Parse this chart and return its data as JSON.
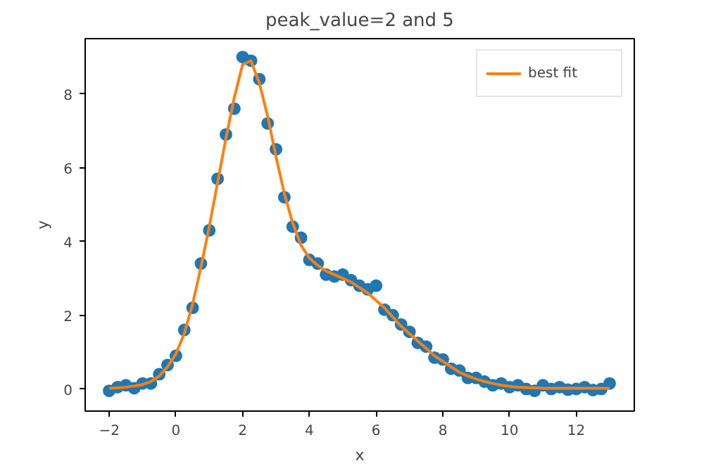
{
  "chart_data": {
    "type": "scatter",
    "title": "peak_value=2 and 5",
    "xlabel": "x",
    "ylabel": "y",
    "xlim": [
      -2.72,
      13.74
    ],
    "ylim": [
      -0.6,
      9.5
    ],
    "xticks": [
      -2,
      0,
      2,
      4,
      6,
      8,
      10,
      12
    ],
    "yticks": [
      0,
      2,
      4,
      6,
      8
    ],
    "grid": false,
    "legend": "top right",
    "x": [
      -2,
      -1.75,
      -1.5,
      -1.25,
      -1,
      -0.75,
      -0.5,
      -0.25,
      0,
      0.25,
      0.5,
      0.75,
      1,
      1.25,
      1.5,
      1.75,
      2,
      2.25,
      2.5,
      2.75,
      3,
      3.25,
      3.5,
      3.75,
      4,
      4.25,
      4.5,
      4.75,
      5,
      5.25,
      5.5,
      5.75,
      6,
      6.25,
      6.5,
      6.75,
      7,
      7.25,
      7.5,
      7.75,
      8,
      8.25,
      8.5,
      8.75,
      9,
      9.25,
      9.5,
      9.75,
      10,
      10.25,
      10.5,
      10.75,
      11,
      11.25,
      11.5,
      11.75,
      12,
      12.25,
      12.5,
      12.75,
      13
    ],
    "series": [
      {
        "marker": "circle",
        "color": "#1f77b4",
        "values": [
          -0.05,
          0.05,
          0.1,
          0.02,
          0.15,
          0.15,
          0.4,
          0.65,
          0.9,
          1.6,
          2.2,
          3.4,
          4.3,
          5.7,
          6.9,
          7.6,
          9.0,
          8.9,
          8.4,
          7.2,
          6.5,
          5.2,
          4.4,
          4.1,
          3.5,
          3.4,
          3.1,
          3.05,
          3.1,
          2.95,
          2.8,
          2.7,
          2.8,
          2.15,
          2.0,
          1.75,
          1.55,
          1.25,
          1.15,
          0.85,
          0.8,
          0.55,
          0.5,
          0.3,
          0.3,
          0.2,
          0.1,
          0.15,
          0.05,
          0.1,
          0.0,
          -0.05,
          0.1,
          0.0,
          0.05,
          -0.02,
          0.0,
          0.05,
          -0.03,
          0.0,
          0.15
        ]
      },
      {
        "type": "line",
        "name": "best fit",
        "color": "#ff7f0e",
        "values": [
          0.02,
          0.03,
          0.05,
          0.08,
          0.12,
          0.2,
          0.35,
          0.6,
          0.95,
          1.5,
          2.3,
          3.3,
          4.4,
          5.6,
          6.8,
          7.9,
          8.8,
          8.9,
          8.3,
          7.4,
          6.3,
          5.3,
          4.5,
          3.9,
          3.55,
          3.35,
          3.2,
          3.1,
          3.0,
          2.9,
          2.75,
          2.6,
          2.4,
          2.2,
          1.95,
          1.7,
          1.5,
          1.3,
          1.1,
          0.9,
          0.75,
          0.6,
          0.45,
          0.35,
          0.27,
          0.2,
          0.15,
          0.1,
          0.07,
          0.05,
          0.04,
          0.03,
          0.02,
          0.02,
          0.02,
          0.02,
          0.02,
          0.02,
          0.02,
          0.02,
          0.02
        ]
      }
    ]
  }
}
